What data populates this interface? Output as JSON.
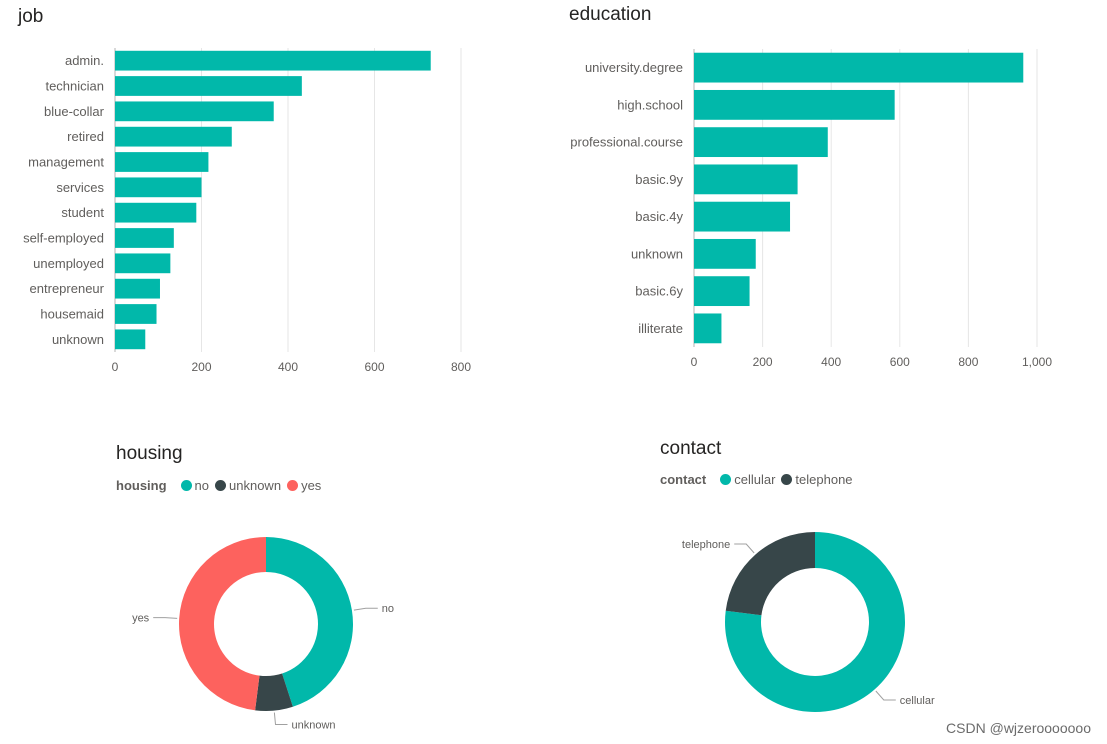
{
  "colors": {
    "teal": "#01b8aa",
    "dark": "#374649",
    "red": "#fd625e",
    "grid": "#e6e6e6",
    "axis": "#605e5c"
  },
  "watermark": "CSDN @wjzerooooooo",
  "chart_data": [
    {
      "type": "bar",
      "orientation": "horizontal",
      "title": "job",
      "categories": [
        "admin.",
        "technician",
        "blue-collar",
        "retired",
        "management",
        "services",
        "student",
        "self-employed",
        "unemployed",
        "entrepreneur",
        "housemaid",
        "unknown"
      ],
      "values": [
        730,
        432,
        367,
        270,
        216,
        200,
        188,
        136,
        128,
        104,
        96,
        70
      ],
      "xlim": [
        0,
        800
      ],
      "xticks": [
        0,
        200,
        400,
        600,
        800
      ],
      "tick_labels": [
        "0",
        "200",
        "400",
        "600",
        "800"
      ],
      "grid": true,
      "color": "#01b8aa"
    },
    {
      "type": "bar",
      "orientation": "horizontal",
      "title": "education",
      "categories": [
        "university.degree",
        "high.school",
        "professional.course",
        "basic.9y",
        "basic.4y",
        "unknown",
        "basic.6y",
        "illiterate"
      ],
      "values": [
        960,
        585,
        390,
        302,
        280,
        180,
        162,
        80
      ],
      "xlim": [
        0,
        1000
      ],
      "xticks": [
        0,
        200,
        400,
        600,
        800,
        1000
      ],
      "tick_labels": [
        "0",
        "200",
        "400",
        "600",
        "800",
        "1,000"
      ],
      "grid": true,
      "color": "#01b8aa"
    },
    {
      "type": "pie",
      "donut": true,
      "title": "housing",
      "legend_title": "housing",
      "legend_position": "top-left",
      "slices": [
        {
          "label": "no",
          "value": 45,
          "color": "#01b8aa"
        },
        {
          "label": "unknown",
          "value": 7,
          "color": "#374649"
        },
        {
          "label": "yes",
          "value": 48,
          "color": "#fd625e"
        }
      ]
    },
    {
      "type": "pie",
      "donut": true,
      "title": "contact",
      "legend_title": "contact",
      "legend_position": "top-left",
      "slices": [
        {
          "label": "cellular",
          "value": 77,
          "color": "#01b8aa"
        },
        {
          "label": "telephone",
          "value": 23,
          "color": "#374649"
        }
      ]
    }
  ]
}
